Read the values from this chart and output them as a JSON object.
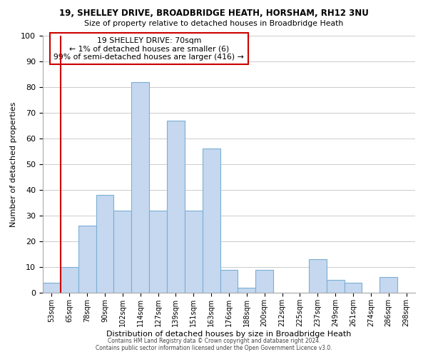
{
  "title1": "19, SHELLEY DRIVE, BROADBRIDGE HEATH, HORSHAM, RH12 3NU",
  "title2": "Size of property relative to detached houses in Broadbridge Heath",
  "xlabel": "Distribution of detached houses by size in Broadbridge Heath",
  "ylabel": "Number of detached properties",
  "footer1": "Contains HM Land Registry data © Crown copyright and database right 2024.",
  "footer2": "Contains public sector information licensed under the Open Government Licence v3.0.",
  "annotation_line1": "19 SHELLEY DRIVE: 70sqm",
  "annotation_line2": "← 1% of detached houses are smaller (6)",
  "annotation_line3": "99% of semi-detached houses are larger (416) →",
  "bar_labels": [
    "53sqm",
    "65sqm",
    "78sqm",
    "90sqm",
    "102sqm",
    "114sqm",
    "127sqm",
    "139sqm",
    "151sqm",
    "163sqm",
    "176sqm",
    "188sqm",
    "200sqm",
    "212sqm",
    "225sqm",
    "237sqm",
    "249sqm",
    "261sqm",
    "274sqm",
    "286sqm",
    "298sqm"
  ],
  "bar_values": [
    4,
    10,
    26,
    38,
    32,
    82,
    32,
    67,
    32,
    56,
    9,
    2,
    9,
    0,
    0,
    13,
    5,
    4,
    0,
    6,
    0
  ],
  "bar_color": "#c5d8f0",
  "bar_edge_color": "#7bafd4",
  "red_line_index": 1,
  "ylim": [
    0,
    100
  ],
  "yticks": [
    0,
    10,
    20,
    30,
    40,
    50,
    60,
    70,
    80,
    90,
    100
  ],
  "background_color": "#ffffff",
  "grid_color": "#cccccc",
  "annotation_box_edge": "#cc0000",
  "red_line_color": "#cc0000"
}
